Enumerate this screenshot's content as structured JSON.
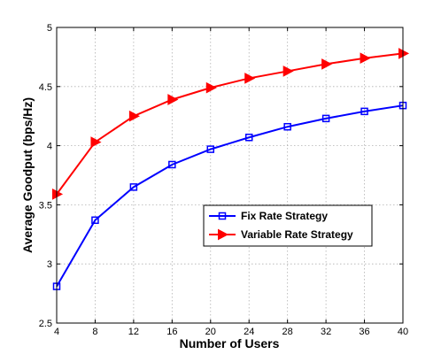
{
  "chart_data": {
    "type": "line",
    "xlabel": "Number of Users",
    "ylabel": "Average Goodput (bps/Hz)",
    "xlim": [
      4,
      40
    ],
    "ylim": [
      2.5,
      5
    ],
    "xticks": [
      "4",
      "8",
      "12",
      "16",
      "20",
      "24",
      "28",
      "32",
      "36",
      "40"
    ],
    "yticks": [
      "2.5",
      "3",
      "3.5",
      "4",
      "4.5",
      "5"
    ],
    "grid": true,
    "legend_position": "center-right",
    "x": [
      4,
      8,
      12,
      16,
      20,
      24,
      28,
      32,
      36,
      40
    ],
    "series": [
      {
        "name": "Fix Rate Strategy",
        "color": "#0000ff",
        "marker": "square",
        "values": [
          2.81,
          3.37,
          3.65,
          3.84,
          3.97,
          4.07,
          4.16,
          4.23,
          4.29,
          4.34
        ]
      },
      {
        "name": "Variable Rate Strategy",
        "color": "#ff0000",
        "marker": "triangle-right",
        "values": [
          3.59,
          4.03,
          4.25,
          4.39,
          4.49,
          4.57,
          4.63,
          4.69,
          4.74,
          4.78
        ]
      }
    ]
  }
}
